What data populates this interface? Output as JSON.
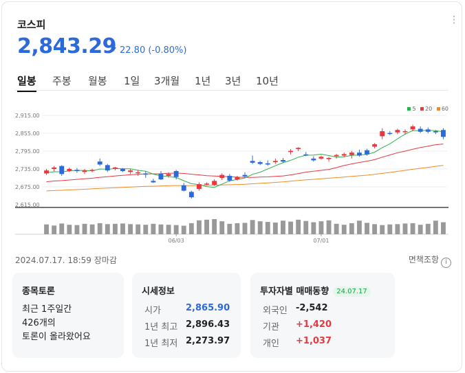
{
  "header": {
    "title": "코스피",
    "price": "2,843.29",
    "change": "22.80 (-0.80%)"
  },
  "tabs": [
    "일봉",
    "주봉",
    "월봉",
    "1일",
    "3개월",
    "1년",
    "3년",
    "10년"
  ],
  "colors": {
    "up": "#e8373f",
    "down": "#2d6ad9",
    "ma5": "#28b24b",
    "ma20": "#e8373f",
    "ma60": "#f08a24"
  },
  "chart_data": {
    "type": "candlestick",
    "yticks": [
      "2,915.00",
      "2,855.00",
      "2,795.00",
      "2,735.00",
      "2,675.00",
      "2,615.00"
    ],
    "ylim": [
      2615,
      2915
    ],
    "xticks": [
      {
        "label": "06/03",
        "index": 17
      },
      {
        "label": "07/01",
        "index": 36
      }
    ],
    "legend": [
      "5",
      "20",
      "60"
    ],
    "candles": [
      [
        2720,
        2735,
        2715,
        2730
      ],
      [
        2735,
        2745,
        2728,
        2740
      ],
      [
        2745,
        2748,
        2712,
        2718
      ],
      [
        2728,
        2740,
        2725,
        2735
      ],
      [
        2732,
        2738,
        2722,
        2728
      ],
      [
        2725,
        2735,
        2718,
        2730
      ],
      [
        2730,
        2736,
        2724,
        2732
      ],
      [
        2760,
        2770,
        2745,
        2750
      ],
      [
        2748,
        2752,
        2725,
        2730
      ],
      [
        2738,
        2742,
        2730,
        2740
      ],
      [
        2735,
        2738,
        2725,
        2728
      ],
      [
        2725,
        2735,
        2718,
        2730
      ],
      [
        2722,
        2732,
        2712,
        2724
      ],
      [
        2720,
        2728,
        2705,
        2716
      ],
      [
        2695,
        2702,
        2688,
        2690
      ],
      [
        2720,
        2728,
        2698,
        2700
      ],
      [
        2712,
        2724,
        2706,
        2718
      ],
      [
        2728,
        2732,
        2700,
        2708
      ],
      [
        2680,
        2688,
        2660,
        2662
      ],
      [
        2658,
        2662,
        2636,
        2640
      ],
      [
        2668,
        2690,
        2662,
        2684
      ],
      [
        2685,
        2690,
        2680,
        2686
      ],
      [
        2682,
        2700,
        2678,
        2695
      ],
      [
        2705,
        2720,
        2698,
        2715
      ],
      [
        2712,
        2718,
        2692,
        2696
      ],
      [
        2700,
        2712,
        2696,
        2708
      ],
      [
        2715,
        2724,
        2706,
        2710
      ],
      [
        2762,
        2780,
        2752,
        2756
      ],
      [
        2758,
        2762,
        2748,
        2752
      ],
      [
        2754,
        2764,
        2746,
        2750
      ],
      [
        2758,
        2770,
        2752,
        2762
      ],
      [
        2765,
        2772,
        2756,
        2760
      ],
      [
        2792,
        2802,
        2784,
        2796
      ],
      [
        2802,
        2808,
        2795,
        2806
      ],
      [
        2784,
        2792,
        2778,
        2782
      ],
      [
        2770,
        2778,
        2760,
        2764
      ],
      [
        2770,
        2780,
        2766,
        2776
      ],
      [
        2768,
        2775,
        2760,
        2772
      ],
      [
        2778,
        2786,
        2770,
        2782
      ],
      [
        2780,
        2790,
        2774,
        2785
      ],
      [
        2782,
        2796,
        2770,
        2790
      ],
      [
        2790,
        2800,
        2776,
        2780
      ],
      [
        2798,
        2803,
        2780,
        2784
      ],
      [
        2810,
        2822,
        2804,
        2818
      ],
      [
        2845,
        2872,
        2835,
        2862
      ],
      [
        2856,
        2862,
        2849,
        2853
      ],
      [
        2858,
        2870,
        2852,
        2866
      ],
      [
        2860,
        2868,
        2850,
        2862
      ],
      [
        2868,
        2884,
        2862,
        2878
      ],
      [
        2870,
        2878,
        2856,
        2860
      ],
      [
        2868,
        2874,
        2855,
        2860
      ],
      [
        2862,
        2866,
        2852,
        2858
      ],
      [
        2866,
        2872,
        2835,
        2843
      ]
    ],
    "volumes": [
      0.62,
      0.55,
      0.68,
      0.6,
      0.58,
      0.66,
      0.62,
      0.7,
      0.64,
      0.66,
      0.68,
      0.64,
      0.62,
      0.6,
      0.66,
      0.62,
      0.6,
      0.58,
      0.54,
      0.7,
      0.88,
      0.92,
      0.96,
      0.82,
      0.66,
      0.7,
      0.72,
      0.9,
      0.82,
      0.78,
      0.74,
      0.86,
      0.8,
      0.92,
      0.84,
      0.76,
      0.82,
      0.88,
      0.66,
      0.6,
      0.7,
      0.86,
      0.72,
      0.64,
      0.58,
      0.62,
      0.64,
      0.68,
      0.7,
      0.6,
      0.66,
      0.86,
      0.76
    ]
  },
  "footer": {
    "date": "2024.07.17. 18:59 장마감",
    "disclaimer": "면책조항"
  },
  "discussion": {
    "title": "종목토론",
    "line1": "최근 1주일간",
    "line2": "426개의",
    "line3": "토론이 올라왔어요"
  },
  "quote": {
    "title": "시세정보",
    "rows": [
      {
        "label": "시가",
        "value": "2,865.90",
        "color": "#2d6ad9"
      },
      {
        "label": "1년 최고",
        "value": "2,896.43",
        "color": "#222"
      },
      {
        "label": "1년 최저",
        "value": "2,273.97",
        "color": "#222"
      }
    ]
  },
  "investors": {
    "title": "투자자별 매매동향",
    "date": "24.07.17",
    "rows": [
      {
        "label": "외국인",
        "value": "-2,542",
        "color": "#222"
      },
      {
        "label": "기관",
        "value": "+1,420",
        "color": "#e8373f"
      },
      {
        "label": "개인",
        "value": "+1,037",
        "color": "#e8373f"
      }
    ]
  }
}
